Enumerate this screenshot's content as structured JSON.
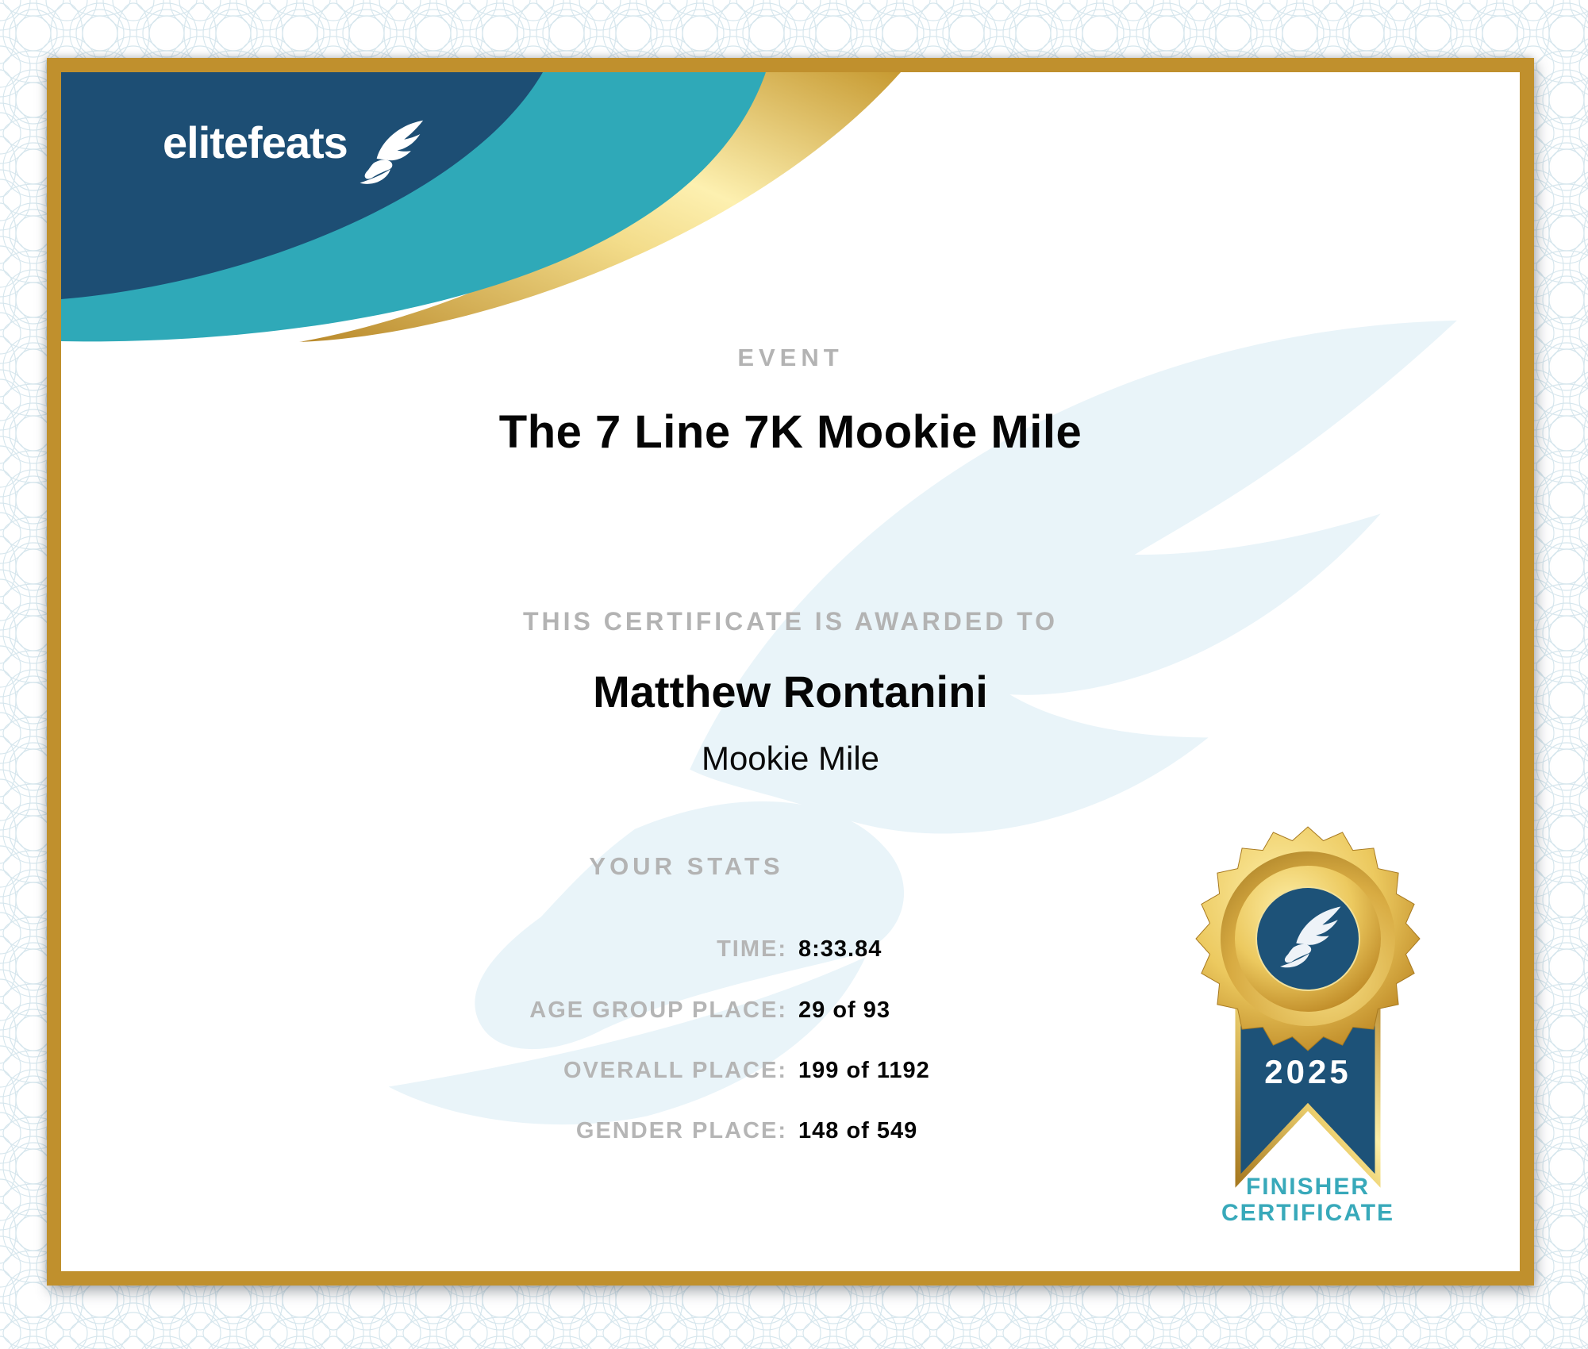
{
  "brand": {
    "name": "elitefeats"
  },
  "event": {
    "label": "EVENT",
    "name": "The 7 Line 7K Mookie Mile"
  },
  "recipient": {
    "awarded_label": "THIS CERTIFICATE IS AWARDED TO",
    "name": "Matthew Rontanini",
    "race": "Mookie Mile"
  },
  "stats": {
    "title": "YOUR STATS",
    "rows": [
      {
        "label": "TIME:",
        "value": "8:33.84"
      },
      {
        "label": "AGE GROUP PLACE:",
        "value": "29 of 93"
      },
      {
        "label": "OVERALL PLACE:",
        "value": "199 of 1192"
      },
      {
        "label": "GENDER PLACE:",
        "value": "148 of 549"
      }
    ]
  },
  "badge": {
    "year": "2025",
    "caption": [
      "FINISHER",
      "CERTIFICATE"
    ]
  },
  "icons": {
    "logo": "winged-foot-icon",
    "watermark": "winged-foot-watermark",
    "badge": "winged-foot-medal-icon"
  },
  "colors": {
    "navy": "#1d4e74",
    "teal": "#2fa9b8",
    "frame_gold": "#c0902d",
    "caption_teal": "#38a9ba",
    "label_gray": "#b5b5b5",
    "watermark_blue": "#e9f4f9"
  }
}
